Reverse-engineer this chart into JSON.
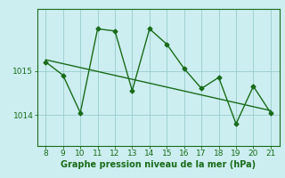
{
  "x": [
    8,
    9,
    10,
    11,
    12,
    13,
    14,
    15,
    16,
    17,
    18,
    19,
    20,
    21
  ],
  "y": [
    1015.2,
    1014.9,
    1014.05,
    1015.95,
    1015.9,
    1014.55,
    1015.95,
    1015.6,
    1015.05,
    1014.6,
    1014.85,
    1013.8,
    1014.65,
    1014.05
  ],
  "trend_x": [
    8,
    21
  ],
  "trend_y": [
    1015.25,
    1014.1
  ],
  "xlim": [
    7.5,
    21.5
  ],
  "ylim": [
    1013.3,
    1016.4
  ],
  "yticks": [
    1014,
    1015
  ],
  "xticks": [
    8,
    9,
    10,
    11,
    12,
    13,
    14,
    15,
    16,
    17,
    18,
    19,
    20,
    21
  ],
  "xlabel": "Graphe pression niveau de la mer (hPa)",
  "line_color": "#1a6b1a",
  "bg_color": "#cceef0",
  "grid_color": "#99cccc",
  "marker": "D",
  "marker_size": 2.5,
  "line_width": 1.0,
  "xlabel_fontsize": 7.0,
  "tick_fontsize": 6.5,
  "ytick_labels": [
    "1014",
    "1015"
  ]
}
